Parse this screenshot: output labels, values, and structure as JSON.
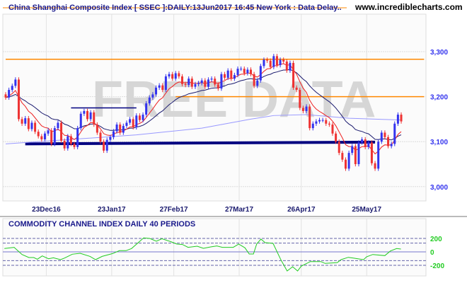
{
  "header": {
    "title": "China Shanghai Composite Index [ SSEC ]:DAILY:13Jun2017 16:45 New York : Data Delay..",
    "site": "www.incrediblecharts.com",
    "watermark": "FREE DATA"
  },
  "colors": {
    "up": "#3333ee",
    "down": "#ee3333",
    "ma_short": "#ee2222",
    "ma_medium": "#1a1a6e",
    "ma_long": "#9999ff",
    "levels": "#ff8800",
    "support": "#000080",
    "cci": "#22cc22"
  },
  "chart_data": [
    {
      "type": "candlestick",
      "title": "China Shanghai Composite Index [ SSEC ]:DAILY:13Jun2017 16:45 New York : Data Delay..",
      "ylim": [
        2970,
        3330
      ],
      "yticks": [
        "3,000",
        "3,100",
        "3,200",
        "3,300"
      ],
      "ytick_values": [
        3000,
        3100,
        3200,
        3300
      ],
      "xticks": [
        {
          "label": "23Dec16",
          "bar": 12
        },
        {
          "label": "23Jan17",
          "bar": 32
        },
        {
          "label": "27Feb17",
          "bar": 51
        },
        {
          "label": "27Mar17",
          "bar": 71
        },
        {
          "label": "26Apr17",
          "bar": 90
        },
        {
          "label": "25May17",
          "bar": 110
        }
      ],
      "grid": true,
      "close": [
        3198,
        3215,
        3224,
        3238,
        3150,
        3140,
        3152,
        3128,
        3142,
        3122,
        3112,
        3105,
        3118,
        3125,
        3095,
        3130,
        3142,
        3102,
        3085,
        3112,
        3095,
        3088,
        3130,
        3162,
        3168,
        3150,
        3165,
        3138,
        3120,
        3100,
        3080,
        3104,
        3110,
        3123,
        3138,
        3120,
        3135,
        3142,
        3150,
        3132,
        3158,
        3148,
        3160,
        3185,
        3198,
        3205,
        3220,
        3225,
        3215,
        3245,
        3250,
        3240,
        3252,
        3245,
        3228,
        3226,
        3240,
        3222,
        3228,
        3230,
        3236,
        3222,
        3238,
        3240,
        3227,
        3218,
        3250,
        3242,
        3258,
        3240,
        3248,
        3262,
        3262,
        3252,
        3260,
        3250,
        3224,
        3236,
        3268,
        3282,
        3280,
        3266,
        3290,
        3270,
        3282,
        3278,
        3258,
        3275,
        3220,
        3215,
        3175,
        3168,
        3178,
        3130,
        3140,
        3145,
        3148,
        3148,
        3140,
        3138,
        3118,
        3100,
        3075,
        3060,
        3040,
        3075,
        3090,
        3050,
        3098,
        3105,
        3088,
        3098,
        3052,
        3040,
        3100,
        3120,
        3110,
        3090,
        3095,
        3140,
        3160,
        3145
      ],
      "open_first": 3205,
      "ma_long": [
        [
          0,
          3095
        ],
        [
          20,
          3105
        ],
        [
          40,
          3115
        ],
        [
          60,
          3130
        ],
        [
          75,
          3150
        ],
        [
          82,
          3158
        ],
        [
          92,
          3160
        ],
        [
          105,
          3152
        ],
        [
          121,
          3148
        ]
      ],
      "ma_short_period": 8,
      "ma_medium_period": 21,
      "horizontal_levels": [
        {
          "value": 3283,
          "from_bar": 0,
          "to_bar": 128,
          "style": "orange"
        },
        {
          "value": 3200,
          "from_bar": 52,
          "to_bar": 128,
          "style": "orange"
        },
        {
          "value": 3175,
          "from_bar": 20,
          "to_bar": 40,
          "style": "navy-thin"
        }
      ],
      "support_line": {
        "from": [
          6,
          3095
        ],
        "to": [
          113,
          3099
        ]
      }
    },
    {
      "type": "line",
      "title": "COMMODITY CHANNEL INDEX DAILY 40 PERIODS",
      "yticks": [
        "200",
        "0",
        "-200"
      ],
      "ytick_values": [
        200,
        0,
        -200
      ],
      "dashed_levels": [
        200,
        130,
        -130,
        -200
      ],
      "zero_line": 0,
      "points": [
        [
          -0.4,
          49
        ],
        [
          2.6,
          67
        ],
        [
          5,
          -39
        ],
        [
          7.1,
          -84
        ],
        [
          8.6,
          -84
        ],
        [
          9.7,
          -109
        ],
        [
          11.2,
          -60
        ],
        [
          13.1,
          -102
        ],
        [
          14.6,
          -88
        ],
        [
          16.8,
          -116
        ],
        [
          18.1,
          -91
        ],
        [
          20.4,
          -35
        ],
        [
          22.8,
          -21
        ],
        [
          25.8,
          -67
        ],
        [
          27.5,
          -116
        ],
        [
          29.5,
          -67
        ],
        [
          32.7,
          -25
        ],
        [
          34.8,
          18
        ],
        [
          36.8,
          18
        ],
        [
          38.5,
          49
        ],
        [
          42.2,
          207
        ],
        [
          44.1,
          200
        ],
        [
          46.1,
          158
        ],
        [
          47.8,
          196
        ],
        [
          50.4,
          154
        ],
        [
          52.4,
          116
        ],
        [
          54.1,
          109
        ],
        [
          55.8,
          67
        ],
        [
          58.6,
          84
        ],
        [
          60.5,
          53
        ],
        [
          62.7,
          74
        ],
        [
          64.6,
          88
        ],
        [
          66.3,
          67
        ],
        [
          69.6,
          67
        ],
        [
          71.3,
          116
        ],
        [
          73.2,
          60
        ],
        [
          74.5,
          -32
        ],
        [
          75.8,
          -32
        ],
        [
          76.8,
          119
        ],
        [
          78.1,
          189
        ],
        [
          79.4,
          137
        ],
        [
          81.8,
          126
        ],
        [
          84.2,
          -119
        ],
        [
          86.1,
          -284
        ],
        [
          87.8,
          -221
        ],
        [
          89.3,
          -284
        ],
        [
          90.4,
          -214
        ],
        [
          93.2,
          -144
        ],
        [
          96.4,
          -144
        ],
        [
          97.7,
          -172
        ],
        [
          101.4,
          -161
        ],
        [
          102.6,
          -116
        ],
        [
          104.8,
          -81
        ],
        [
          106.7,
          -95
        ],
        [
          109.5,
          -116
        ],
        [
          110.4,
          -74
        ],
        [
          112.3,
          -39
        ],
        [
          116,
          -56
        ],
        [
          117.7,
          14
        ],
        [
          119.6,
          49
        ],
        [
          120.9,
          42
        ]
      ]
    }
  ]
}
